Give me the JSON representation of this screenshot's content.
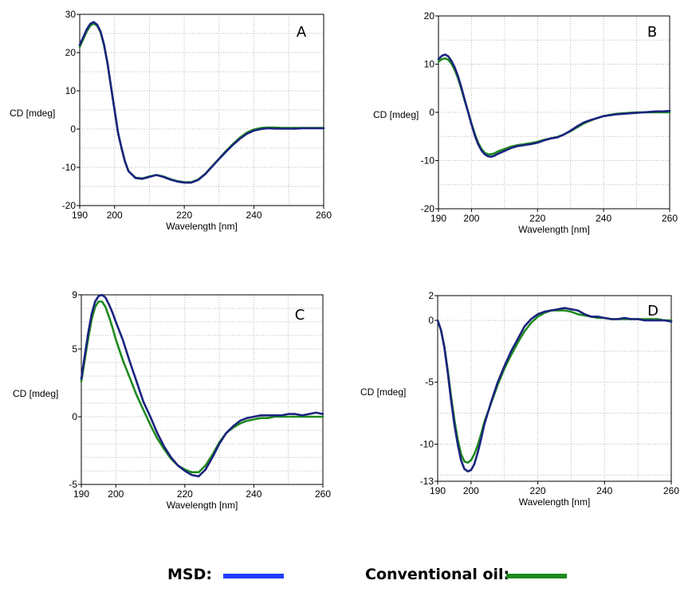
{
  "legend": {
    "msd_label": "MSD:",
    "oil_label": "Conventional oil:",
    "msd_color": "#1e3cff",
    "oil_color": "#1f8a1f"
  },
  "chart_data": [
    {
      "type": "line",
      "panel_label": "A",
      "xlabel": "Wavelength [nm]",
      "ylabel": "CD [mdeg]",
      "xlim": [
        190,
        260
      ],
      "ylim": [
        -20,
        30
      ],
      "xticks": [
        190,
        200,
        220,
        240,
        260
      ],
      "yticks": [
        -20,
        -10,
        0,
        10,
        20,
        30
      ],
      "grid": true,
      "series": [
        {
          "key": "msd",
          "color": "#1a237e",
          "x": [
            190,
            191,
            192,
            193,
            194,
            195,
            196,
            197,
            198,
            199,
            200,
            201,
            202,
            203,
            204,
            206,
            208,
            210,
            212,
            214,
            216,
            218,
            220,
            222,
            224,
            226,
            228,
            230,
            232,
            234,
            236,
            238,
            240,
            242,
            244,
            246,
            248,
            250,
            252,
            254,
            256,
            258,
            260
          ],
          "y": [
            22,
            24,
            26,
            27.5,
            28,
            27.3,
            25.5,
            22,
            17,
            11,
            5,
            -1,
            -5,
            -8.5,
            -11,
            -12.8,
            -13,
            -12.5,
            -12,
            -12.5,
            -13.2,
            -13.7,
            -14,
            -14,
            -13.3,
            -11.8,
            -9.8,
            -7.8,
            -5.9,
            -4.1,
            -2.5,
            -1.2,
            -0.4,
            0,
            0.2,
            0.1,
            0.1,
            0.1,
            0.1,
            0.2,
            0.2,
            0.2,
            0.2
          ]
        },
        {
          "key": "oil",
          "color": "#1f8a1f",
          "x": [
            190,
            191,
            192,
            193,
            194,
            195,
            196,
            197,
            198,
            199,
            200,
            201,
            202,
            203,
            204,
            206,
            208,
            210,
            212,
            214,
            216,
            218,
            220,
            222,
            224,
            226,
            228,
            230,
            232,
            234,
            236,
            238,
            240,
            242,
            244,
            246,
            248,
            250,
            252,
            254,
            256,
            258,
            260
          ],
          "y": [
            21.5,
            23.5,
            25.5,
            27,
            27.6,
            27,
            25.3,
            21.8,
            17,
            11,
            5,
            -1,
            -5,
            -8.5,
            -11,
            -12.7,
            -12.9,
            -12.4,
            -12,
            -12.4,
            -13.1,
            -13.6,
            -13.9,
            -13.9,
            -13.2,
            -11.7,
            -9.7,
            -7.7,
            -5.7,
            -3.9,
            -2.2,
            -0.9,
            -0.1,
            0.3,
            0.4,
            0.4,
            0.3,
            0.3,
            0.3,
            0.3,
            0.3,
            0.3,
            0.3
          ]
        }
      ]
    },
    {
      "type": "line",
      "panel_label": "B",
      "xlabel": "Wavelength [nm]",
      "ylabel": "CD [mdeg]",
      "xlim": [
        190,
        260
      ],
      "ylim": [
        -20,
        20
      ],
      "xticks": [
        190,
        200,
        220,
        240,
        260
      ],
      "yticks": [
        -20,
        -10,
        0,
        10,
        20
      ],
      "grid": true,
      "series": [
        {
          "key": "msd",
          "color": "#1a237e",
          "x": [
            190,
            191,
            192,
            193,
            194,
            195,
            196,
            197,
            198,
            199,
            200,
            201,
            202,
            203,
            204,
            205,
            206,
            207,
            208,
            210,
            212,
            214,
            216,
            218,
            220,
            222,
            224,
            226,
            228,
            230,
            232,
            234,
            236,
            238,
            240,
            242,
            244,
            246,
            248,
            250,
            252,
            254,
            256,
            258,
            260
          ],
          "y": [
            11,
            11.7,
            12,
            11.6,
            10.6,
            9.2,
            7.3,
            5,
            2.5,
            0,
            -2.5,
            -4.8,
            -6.6,
            -7.9,
            -8.7,
            -9.1,
            -9.2,
            -9,
            -8.6,
            -8,
            -7.4,
            -7,
            -6.8,
            -6.6,
            -6.3,
            -5.8,
            -5.4,
            -5.2,
            -4.6,
            -3.8,
            -2.9,
            -2.1,
            -1.6,
            -1.2,
            -0.8,
            -0.6,
            -0.4,
            -0.3,
            -0.2,
            -0.1,
            0,
            0.1,
            0.2,
            0.2,
            0.3
          ]
        },
        {
          "key": "oil",
          "color": "#1f8a1f",
          "x": [
            190,
            191,
            192,
            193,
            194,
            195,
            196,
            197,
            198,
            199,
            200,
            201,
            202,
            203,
            204,
            205,
            206,
            207,
            208,
            210,
            212,
            214,
            216,
            218,
            220,
            222,
            224,
            226,
            228,
            230,
            232,
            234,
            236,
            238,
            240,
            242,
            244,
            246,
            248,
            250,
            252,
            254,
            256,
            258,
            260
          ],
          "y": [
            10.5,
            11,
            11.2,
            10.9,
            10,
            8.7,
            6.9,
            4.7,
            2.3,
            0,
            -2.3,
            -4.5,
            -6.3,
            -7.6,
            -8.4,
            -8.7,
            -8.7,
            -8.5,
            -8.1,
            -7.6,
            -7.1,
            -6.8,
            -6.6,
            -6.4,
            -6.1,
            -5.7,
            -5.4,
            -5.1,
            -4.6,
            -3.9,
            -3.1,
            -2.3,
            -1.7,
            -1.2,
            -0.8,
            -0.5,
            -0.3,
            -0.2,
            -0.1,
            0,
            0,
            0,
            0,
            0,
            0
          ]
        }
      ]
    },
    {
      "type": "line",
      "panel_label": "C",
      "xlabel": "Wavelength [nm]",
      "ylabel": "CD [mdeg]",
      "xlim": [
        190,
        260
      ],
      "ylim": [
        -5,
        9
      ],
      "xticks": [
        190,
        200,
        220,
        240,
        260
      ],
      "yticks": [
        -5,
        0,
        5,
        9
      ],
      "grid": true,
      "series": [
        {
          "key": "msd",
          "color": "#1a237e",
          "x": [
            190,
            191,
            192,
            193,
            194,
            195,
            196,
            197,
            198,
            199,
            200,
            202,
            204,
            206,
            208,
            210,
            212,
            214,
            216,
            218,
            220,
            222,
            224,
            226,
            228,
            230,
            232,
            234,
            236,
            238,
            240,
            242,
            244,
            246,
            248,
            250,
            252,
            254,
            256,
            258,
            260
          ],
          "y": [
            2.8,
            4.5,
            6.2,
            7.6,
            8.5,
            8.9,
            9,
            8.8,
            8.3,
            7.7,
            7,
            5.7,
            4.1,
            2.6,
            1.1,
            0,
            -1.2,
            -2.2,
            -3,
            -3.6,
            -4,
            -4.3,
            -4.4,
            -3.9,
            -3,
            -2,
            -1.2,
            -0.7,
            -0.3,
            -0.1,
            0,
            0.1,
            0.1,
            0.1,
            0.1,
            0.2,
            0.2,
            0.1,
            0.2,
            0.3,
            0.2
          ]
        },
        {
          "key": "oil",
          "color": "#1f8a1f",
          "x": [
            190,
            191,
            192,
            193,
            194,
            195,
            196,
            197,
            198,
            199,
            200,
            202,
            204,
            206,
            208,
            210,
            212,
            214,
            216,
            218,
            220,
            222,
            224,
            226,
            228,
            230,
            232,
            234,
            236,
            238,
            240,
            242,
            244,
            246,
            248,
            250,
            252,
            254,
            256,
            258,
            260
          ],
          "y": [
            2.6,
            4.2,
            5.8,
            7.2,
            8.1,
            8.5,
            8.5,
            8.1,
            7.4,
            6.6,
            5.7,
            4.2,
            2.9,
            1.6,
            0.5,
            -0.6,
            -1.6,
            -2.4,
            -3.1,
            -3.6,
            -3.9,
            -4.1,
            -4.1,
            -3.6,
            -2.8,
            -1.9,
            -1.2,
            -0.8,
            -0.5,
            -0.3,
            -0.2,
            -0.1,
            -0.1,
            0,
            0,
            0,
            0,
            0,
            0,
            0,
            0
          ]
        }
      ]
    },
    {
      "type": "line",
      "panel_label": "D",
      "xlabel": "Wavelength [nm]",
      "ylabel": "CD [mdeg]",
      "xlim": [
        190,
        260
      ],
      "ylim": [
        -13,
        2
      ],
      "xticks": [
        190,
        200,
        220,
        240,
        260
      ],
      "yticks": [
        -13,
        -10,
        -5,
        0,
        2
      ],
      "grid": true,
      "series": [
        {
          "key": "msd",
          "color": "#1a237e",
          "x": [
            190,
            191,
            192,
            193,
            194,
            195,
            196,
            197,
            198,
            199,
            200,
            201,
            202,
            203,
            204,
            206,
            208,
            210,
            212,
            214,
            216,
            218,
            220,
            222,
            224,
            226,
            228,
            230,
            232,
            234,
            236,
            238,
            240,
            242,
            244,
            246,
            248,
            250,
            252,
            254,
            256,
            258,
            260
          ],
          "y": [
            0,
            -0.8,
            -2.2,
            -4.2,
            -6.4,
            -8.4,
            -10,
            -11.3,
            -12,
            -12.2,
            -12.1,
            -11.6,
            -10.7,
            -9.6,
            -8.4,
            -6.6,
            -5,
            -3.7,
            -2.5,
            -1.5,
            -0.5,
            0.1,
            0.5,
            0.7,
            0.8,
            0.9,
            1,
            0.9,
            0.8,
            0.5,
            0.3,
            0.3,
            0.2,
            0.1,
            0.1,
            0.2,
            0.1,
            0.1,
            0,
            0,
            0,
            0,
            -0.1
          ]
        },
        {
          "key": "oil",
          "color": "#1f8a1f",
          "x": [
            190,
            191,
            192,
            193,
            194,
            195,
            196,
            197,
            198,
            199,
            200,
            201,
            202,
            203,
            204,
            206,
            208,
            210,
            212,
            214,
            216,
            218,
            220,
            222,
            224,
            226,
            228,
            230,
            232,
            234,
            236,
            238,
            240,
            242,
            244,
            246,
            248,
            250,
            252,
            254,
            256,
            258,
            260
          ],
          "y": [
            0,
            -0.8,
            -2.1,
            -4,
            -6.1,
            -8,
            -9.6,
            -10.8,
            -11.4,
            -11.5,
            -11.3,
            -10.8,
            -10.1,
            -9.2,
            -8.2,
            -6.7,
            -5.2,
            -3.9,
            -2.8,
            -1.8,
            -0.9,
            -0.2,
            0.3,
            0.6,
            0.8,
            0.8,
            0.8,
            0.7,
            0.5,
            0.4,
            0.3,
            0.2,
            0.2,
            0.1,
            0.1,
            0.1,
            0.1,
            0.1,
            0.1,
            0.1,
            0.1,
            0,
            0
          ]
        }
      ]
    }
  ]
}
